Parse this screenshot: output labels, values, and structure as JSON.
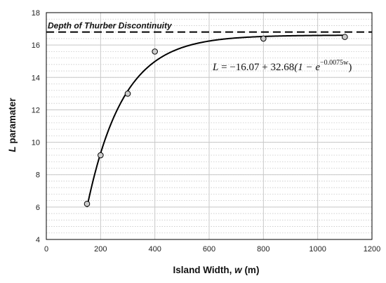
{
  "chart_data": {
    "type": "scatter",
    "title": "",
    "xlabel": {
      "prefix": "Island Width, ",
      "var": "w",
      "suffix": " (m)"
    },
    "ylabel": {
      "var": "L",
      "suffix": " paramater"
    },
    "xlim": [
      0,
      1200
    ],
    "ylim": [
      4,
      18
    ],
    "x_ticks": [
      0,
      200,
      400,
      600,
      800,
      1000,
      1200
    ],
    "y_ticks": [
      4,
      6,
      8,
      10,
      12,
      14,
      16,
      18
    ],
    "grid": {
      "major": true,
      "minor_y": true,
      "vertical": true
    },
    "legend": "none",
    "points": [
      {
        "x": 150,
        "y": 6.2
      },
      {
        "x": 200,
        "y": 9.2
      },
      {
        "x": 300,
        "y": 13.0
      },
      {
        "x": 400,
        "y": 15.6
      },
      {
        "x": 800,
        "y": 16.4
      },
      {
        "x": 1100,
        "y": 16.5
      }
    ],
    "fit": {
      "form": "L = a + b(1 - e^(c*w))",
      "a": -16.07,
      "b": 32.68,
      "c": -0.0075,
      "x_range": [
        150,
        1100
      ],
      "label": {
        "lhs": "L",
        "eq": " = ",
        "a": "−16.07",
        "plus": " + ",
        "b": "32.68",
        "open": "(1 − e",
        "exp": "−0.0075w",
        "close": ")"
      }
    },
    "reference_line": {
      "y": 16.8,
      "label": "Depth of Thurber Discontinuity",
      "style": "dashed"
    },
    "colors": {
      "marker_fill": "#cccccc",
      "marker_edge": "#000000",
      "curve": "#000000",
      "grid": "#c8c8c8",
      "minor_grid": "#c8c8c8"
    }
  }
}
